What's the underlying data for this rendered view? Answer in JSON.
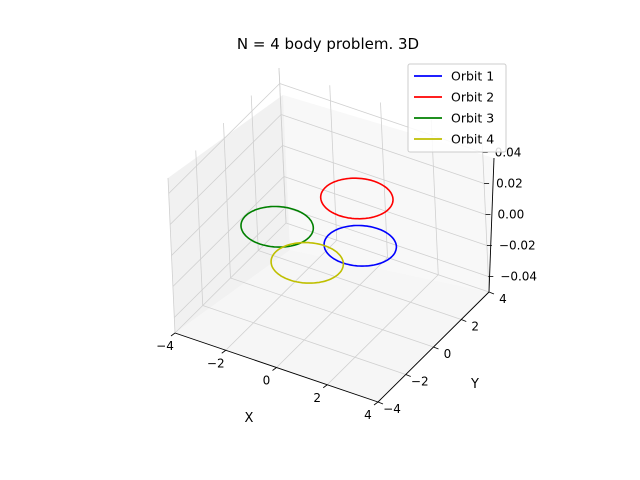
{
  "chart_data": {
    "type": "line",
    "projection": "3d",
    "title": "N = 4 body problem. 3D",
    "xlabel": "X",
    "ylabel": "Y",
    "zlabel": "",
    "xlim": [
      -4,
      4
    ],
    "ylim": [
      -4,
      4
    ],
    "zlim": [
      -0.05,
      0.05
    ],
    "xticks": [
      "−4",
      "−2",
      "0",
      "2",
      "4"
    ],
    "yticks": [
      "−4",
      "−2",
      "0",
      "2",
      "4"
    ],
    "zticks": [
      "−0.04",
      "−0.02",
      "0.00",
      "0.02",
      "0.04"
    ],
    "grid": true,
    "legend_position": "top-right",
    "series": [
      {
        "name": "Orbit 1",
        "color": "#0000ff",
        "center": [
          1.25,
          0.0,
          0.0
        ],
        "radius": 1.25
      },
      {
        "name": "Orbit 2",
        "color": "#ff0000",
        "center": [
          -0.25,
          2.5,
          0.0
        ],
        "radius": 1.25
      },
      {
        "name": "Orbit 3",
        "color": "#008000",
        "center": [
          -1.75,
          -0.5,
          0.0
        ],
        "radius": 1.25
      },
      {
        "name": "Orbit 4",
        "color": "#bfbf00",
        "center": [
          0.2,
          -1.9,
          0.0
        ],
        "radius": 1.25
      }
    ]
  }
}
